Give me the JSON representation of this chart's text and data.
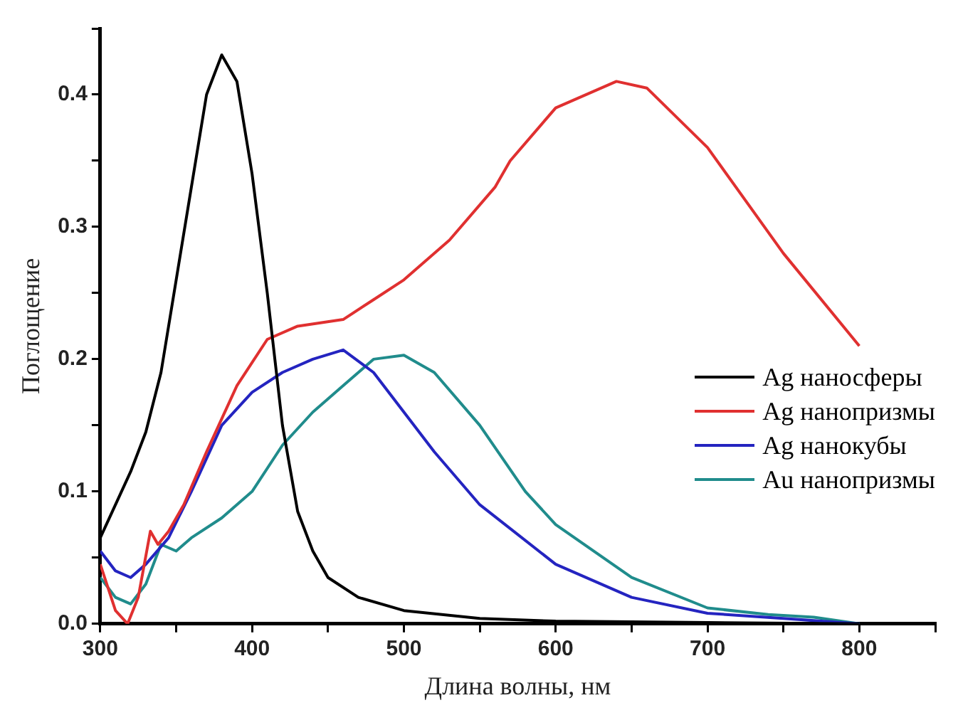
{
  "chart_data": {
    "type": "line",
    "xlabel": "Длина волны, нм",
    "ylabel": "Поглощение",
    "xlim": [
      300,
      850
    ],
    "xticks": [
      300,
      {
        "value": 350,
        "label": null
      },
      400,
      {
        "value": 450,
        "label": null
      },
      500,
      {
        "value": 550,
        "label": null
      },
      600,
      {
        "value": 650,
        "label": null
      },
      700,
      {
        "value": 750,
        "label": null
      },
      800,
      {
        "value": 850,
        "label": null
      }
    ],
    "ylim": [
      0,
      0.45
    ],
    "yticks": [
      {
        "value": 0,
        "label": "0.0"
      },
      {
        "value": 0.05,
        "label": null
      },
      0.1,
      {
        "value": 0.15,
        "label": null
      },
      0.2,
      {
        "value": 0.25,
        "label": null
      },
      0.3,
      {
        "value": 0.35,
        "label": null
      },
      0.4,
      {
        "value": 0.45,
        "label": null
      }
    ],
    "grid": false,
    "legend": "right",
    "marker": "none",
    "line_style": "solid",
    "series": [
      {
        "name": "Ag наносферы",
        "color": "#000000",
        "x": [
          300,
          310,
          320,
          330,
          340,
          350,
          360,
          370,
          380,
          390,
          400,
          410,
          420,
          430,
          440,
          450,
          470,
          500,
          550,
          600,
          700,
          800
        ],
        "values": [
          0.065,
          0.09,
          0.115,
          0.145,
          0.19,
          0.26,
          0.33,
          0.4,
          0.43,
          0.41,
          0.34,
          0.25,
          0.15,
          0.085,
          0.055,
          0.035,
          0.02,
          0.01,
          0.004,
          0.002,
          0.001,
          0
        ]
      },
      {
        "name": "Ag нанопризмы",
        "color": "#e03030",
        "x": [
          300,
          310,
          318,
          325,
          333,
          338,
          345,
          355,
          370,
          390,
          410,
          430,
          460,
          480,
          500,
          530,
          560,
          570,
          600,
          640,
          660,
          700,
          750,
          800
        ],
        "values": [
          0.045,
          0.01,
          0,
          0.02,
          0.07,
          0.06,
          0.07,
          0.09,
          0.13,
          0.18,
          0.215,
          0.225,
          0.23,
          0.245,
          0.26,
          0.29,
          0.33,
          0.35,
          0.39,
          0.41,
          0.405,
          0.36,
          0.28,
          0.21
        ]
      },
      {
        "name": "Ag нанокубы",
        "color": "#2424c0",
        "x": [
          300,
          310,
          320,
          330,
          345,
          360,
          380,
          400,
          420,
          440,
          460,
          480,
          500,
          520,
          550,
          600,
          650,
          700,
          750,
          800
        ],
        "values": [
          0.055,
          0.04,
          0.035,
          0.045,
          0.065,
          0.1,
          0.15,
          0.175,
          0.19,
          0.2,
          0.207,
          0.19,
          0.16,
          0.13,
          0.09,
          0.045,
          0.02,
          0.008,
          0.004,
          0
        ]
      },
      {
        "name": "Au нанопризмы",
        "color": "#208c8c",
        "x": [
          300,
          310,
          320,
          330,
          340,
          350,
          360,
          380,
          400,
          420,
          440,
          460,
          480,
          500,
          520,
          550,
          580,
          600,
          650,
          700,
          740,
          770,
          800
        ],
        "values": [
          0.035,
          0.02,
          0.015,
          0.03,
          0.06,
          0.055,
          0.065,
          0.08,
          0.1,
          0.135,
          0.16,
          0.18,
          0.2,
          0.203,
          0.19,
          0.15,
          0.1,
          0.075,
          0.035,
          0.012,
          0.007,
          0.005,
          0
        ]
      }
    ]
  }
}
